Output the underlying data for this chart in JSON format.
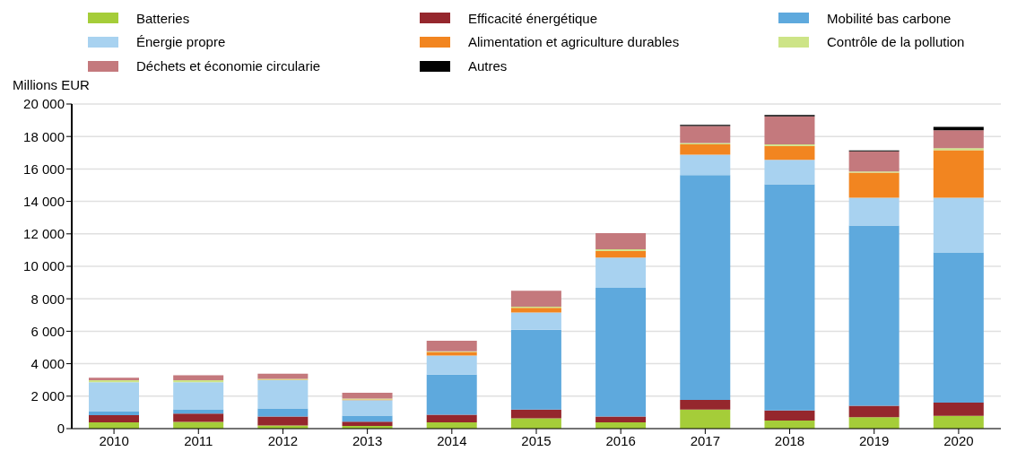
{
  "chart_data": {
    "type": "bar",
    "stacked": true,
    "ylabel": "Millions EUR",
    "categories": [
      "2010",
      "2011",
      "2012",
      "2013",
      "2014",
      "2015",
      "2016",
      "2017",
      "2018",
      "2019",
      "2020"
    ],
    "series": [
      {
        "name": "Batteries",
        "color": "#a5cd39",
        "values": [
          380,
          410,
          200,
          160,
          380,
          630,
          380,
          1170,
          500,
          700,
          790
        ]
      },
      {
        "name": "Efficacité énergétique",
        "color": "#95272d",
        "values": [
          450,
          510,
          540,
          270,
          470,
          540,
          360,
          600,
          620,
          710,
          810
        ]
      },
      {
        "name": "Mobilité bas carbone",
        "color": "#5ea9dd",
        "values": [
          250,
          270,
          500,
          370,
          2480,
          4920,
          7930,
          13850,
          13930,
          11110,
          9250
        ]
      },
      {
        "name": "Énergie propre",
        "color": "#a8d2f0",
        "values": [
          1780,
          1670,
          1750,
          960,
          1170,
          1060,
          1870,
          1260,
          1510,
          1710,
          3380
        ]
      },
      {
        "name": "Alimentation et agriculture durables",
        "color": "#f28520",
        "values": [
          null,
          null,
          20,
          40,
          220,
          290,
          410,
          630,
          860,
          1540,
          2920
        ]
      },
      {
        "name": "Contrôle de la pollution",
        "color": "#cde487",
        "values": [
          120,
          120,
          50,
          50,
          50,
          70,
          100,
          90,
          90,
          70,
          130
        ]
      },
      {
        "name": "Déchets et économie circularie",
        "color": "#c4797d",
        "values": [
          160,
          310,
          330,
          360,
          640,
          980,
          1000,
          1050,
          1730,
          1240,
          1100
        ]
      },
      {
        "name": "Autres",
        "color": "#000000",
        "values": [
          0,
          0,
          0,
          0,
          0,
          0,
          0,
          60,
          80,
          60,
          210
        ]
      }
    ],
    "ylim": [
      0,
      20000
    ],
    "yticks": [
      0,
      {
        "value": 2000,
        "label": "2 000"
      },
      {
        "value": 4000,
        "label": "4 000"
      },
      {
        "value": 6000,
        "label": "6 000"
      },
      {
        "value": 8000,
        "label": "8 000"
      },
      {
        "value": 10000,
        "label": "10 000"
      },
      {
        "value": 12000,
        "label": "12 000"
      },
      {
        "value": 14000,
        "label": "14 000"
      },
      {
        "value": 16000,
        "label": "16 000"
      },
      {
        "value": 18000,
        "label": "18 000"
      },
      {
        "value": 20000,
        "label": "20 000"
      }
    ],
    "grid": "y",
    "legend": "top"
  }
}
